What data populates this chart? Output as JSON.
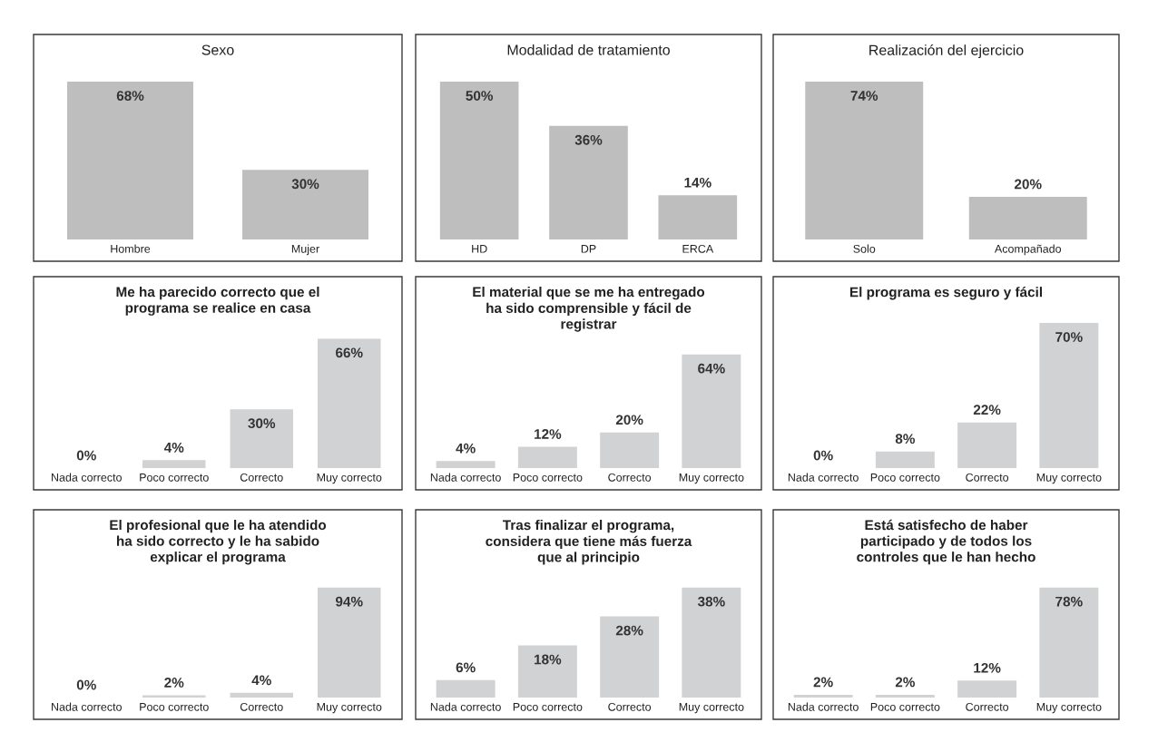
{
  "chart_data": [
    {
      "type": "bar",
      "title": "Sexo",
      "categories": [
        "Hombre",
        "Mujer"
      ],
      "values": [
        68,
        30
      ],
      "value_labels": [
        "68%",
        "30%"
      ],
      "color": "#bebebe",
      "tick_labels": "x"
    },
    {
      "type": "bar",
      "title": "Modalidad de tratamiento",
      "categories": [
        "HD",
        "DP",
        "ERCA"
      ],
      "values": [
        50,
        36,
        14
      ],
      "value_labels": [
        "50%",
        "36%",
        "14%"
      ],
      "color": "#bebebe",
      "tick_labels": "x"
    },
    {
      "type": "bar",
      "title": "Realización del ejercicio",
      "categories": [
        "Solo",
        "Acompañado"
      ],
      "values": [
        74,
        20
      ],
      "value_labels": [
        "74%",
        "20%"
      ],
      "color": "#bebebe",
      "tick_labels": "x"
    },
    {
      "type": "bar",
      "title": "Me ha parecido correcto que el\nprograma se realice en casa",
      "categories": [
        "Nada correcto",
        "Poco correcto",
        "Correcto",
        "Muy correcto"
      ],
      "values": [
        0,
        4,
        30,
        66
      ],
      "value_labels": [
        "0%",
        "4%",
        "30%",
        "66%"
      ],
      "color": "#d1d2d4",
      "tick_labels": "x"
    },
    {
      "type": "bar",
      "title": "El material que se me ha entregado\nha sido comprensible y fácil de\nregistrar",
      "categories": [
        "Nada correcto",
        "Poco correcto",
        "Correcto",
        "Muy correcto"
      ],
      "values": [
        4,
        12,
        20,
        64
      ],
      "value_labels": [
        "4%",
        "12%",
        "20%",
        "64%"
      ],
      "color": "#d1d2d4",
      "tick_labels": "x"
    },
    {
      "type": "bar",
      "title": "El programa es seguro y fácil",
      "categories": [
        "Nada correcto",
        "Poco correcto",
        "Correcto",
        "Muy correcto"
      ],
      "values": [
        0,
        8,
        22,
        70
      ],
      "value_labels": [
        "0%",
        "8%",
        "22%",
        "70%"
      ],
      "color": "#d1d2d4",
      "tick_labels": "x"
    },
    {
      "type": "bar",
      "title": "El profesional que le ha atendido\nha sido correcto y le ha sabido\nexplicar el programa",
      "categories": [
        "Nada correcto",
        "Poco correcto",
        "Correcto",
        "Muy correcto"
      ],
      "values": [
        0,
        2,
        4,
        94
      ],
      "value_labels": [
        "0%",
        "2%",
        "4%",
        "94%"
      ],
      "color": "#d1d2d4",
      "tick_labels": "x"
    },
    {
      "type": "bar",
      "title": "Tras finalizar el programa,\nconsidera que tiene más fuerza\nque al principio",
      "categories": [
        "Nada correcto",
        "Poco correcto",
        "Correcto",
        "Muy correcto"
      ],
      "values": [
        6,
        18,
        28,
        38
      ],
      "value_labels": [
        "6%",
        "18%",
        "28%",
        "38%"
      ],
      "color": "#d1d2d4",
      "tick_labels": "x"
    },
    {
      "type": "bar",
      "title": "Está satisfecho de haber\nparticipado y de todos los\ncontroles que le han hecho",
      "categories": [
        "Nada correcto",
        "Poco correcto",
        "Correcto",
        "Muy correcto"
      ],
      "values": [
        2,
        2,
        12,
        78
      ],
      "value_labels": [
        "2%",
        "2%",
        "12%",
        "78%"
      ],
      "color": "#d1d2d4",
      "tick_labels": "x"
    }
  ]
}
